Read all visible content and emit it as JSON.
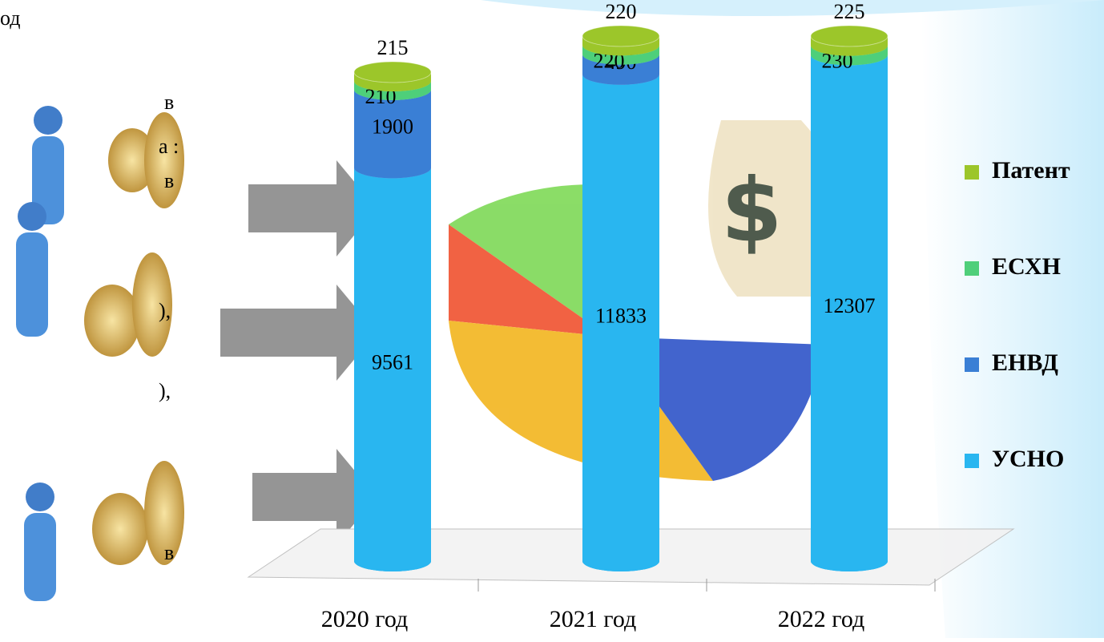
{
  "left_text": [
    "од",
    "в",
    "а :",
    "в",
    "),",
    "),",
    "в"
  ],
  "chart_data": {
    "type": "cylinder-stacked",
    "categories": [
      "2020 год",
      "2021 год",
      "2022 год"
    ],
    "series": [
      {
        "name": "УСНО",
        "color": "#29b6f0",
        "values": [
          9561,
          11833,
          12307
        ]
      },
      {
        "name": "ЕНВД",
        "color": "#3a7fd5",
        "values": [
          1900,
          490,
          null
        ]
      },
      {
        "name": "ЕСХН",
        "color": "#4fcf7a",
        "values": [
          210,
          220,
          230
        ]
      },
      {
        "name": "Патент",
        "color": "#9cc62a",
        "values": [
          215,
          220,
          225
        ]
      }
    ],
    "legend": "right"
  }
}
